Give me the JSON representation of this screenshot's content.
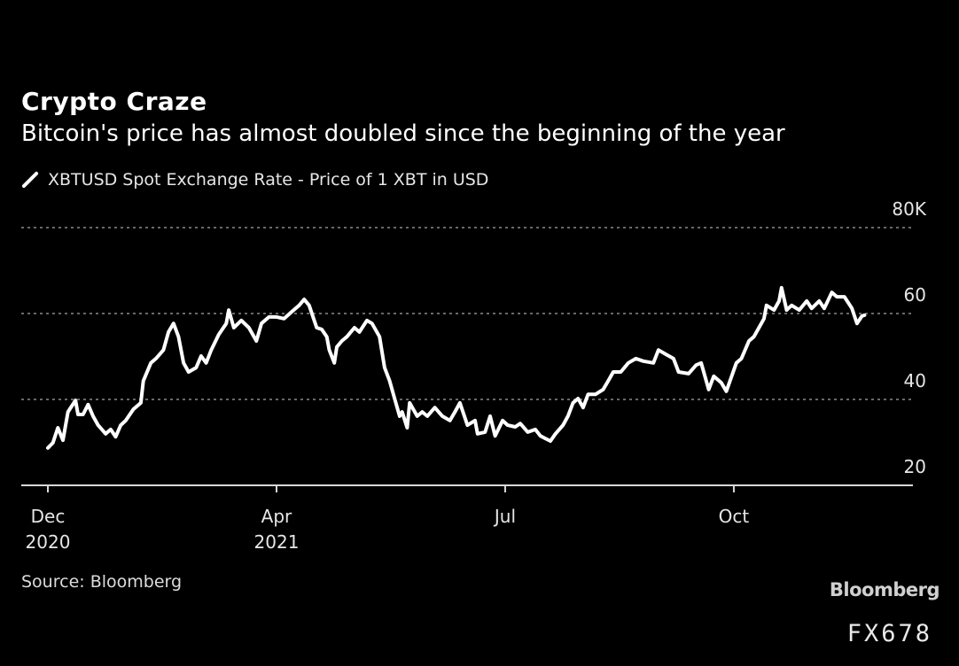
{
  "header": {
    "title": "Crypto Craze",
    "subtitle": "Bitcoin's price has almost doubled since the beginning of the year",
    "legend_label": "XBTUSD Spot Exchange Rate - Price of 1 XBT in USD"
  },
  "footer": {
    "source": "Source: Bloomberg",
    "logo": "Bloomberg",
    "watermark": "FX678"
  },
  "colors": {
    "background": "#000000",
    "line": "#ffffff",
    "grid": "#8a8a8a",
    "text": "#e6e6e6"
  },
  "chart_data": {
    "type": "line",
    "title": "Crypto Craze",
    "subtitle": "Bitcoin's price has almost doubled since the beginning of the year",
    "xlabel": "",
    "ylabel": "",
    "x_unit": "days from first tick",
    "xlim": [
      -10,
      344
    ],
    "ylim": [
      20,
      80
    ],
    "y_ticks": [
      {
        "value": 20,
        "label": "20"
      },
      {
        "value": 40,
        "label": "40"
      },
      {
        "value": 60,
        "label": "60"
      },
      {
        "value": 80,
        "label": "80K"
      }
    ],
    "x_ticks": [
      {
        "value": 0,
        "label": "Dec",
        "sublabel": "2020"
      },
      {
        "value": 91,
        "label": "Apr",
        "sublabel": "2021"
      },
      {
        "value": 182,
        "label": "Jul",
        "sublabel": ""
      },
      {
        "value": 273,
        "label": "Oct",
        "sublabel": ""
      }
    ],
    "grid": true,
    "legend_position": "top-left",
    "series": [
      {
        "name": "XBTUSD Spot Exchange Rate - Price of 1 XBT in USD",
        "x": [
          0,
          2,
          4,
          6,
          8,
          11,
          12,
          14,
          16,
          18,
          20,
          23,
          25,
          27,
          29,
          31,
          34,
          37,
          38,
          41,
          43,
          46,
          48,
          50,
          52,
          54,
          56,
          59,
          61,
          63,
          65,
          68,
          71,
          72,
          74,
          77,
          80,
          83,
          85,
          88,
          91,
          94,
          97,
          100,
          102,
          104,
          107,
          109,
          111,
          112,
          114,
          115,
          117,
          119,
          122,
          124,
          127,
          129,
          132,
          134,
          136,
          138,
          140,
          141,
          143,
          144,
          147,
          149,
          151,
          154,
          157,
          160,
          162,
          164,
          167,
          170,
          171,
          174,
          176,
          178,
          181,
          183,
          186,
          188,
          191,
          194,
          196,
          198,
          200,
          202,
          205,
          207,
          209,
          211,
          213,
          215,
          218,
          221,
          223,
          225,
          228,
          231,
          234,
          237,
          241,
          243,
          246,
          249,
          251,
          255,
          258,
          260,
          263,
          265,
          268,
          270,
          274,
          276,
          279,
          281,
          283,
          285,
          286,
          289,
          291,
          292,
          294,
          296,
          299,
          302,
          304,
          307,
          309,
          312,
          314,
          317,
          320,
          322,
          324,
          325
        ],
        "y": [
          28.7,
          29.9,
          33.4,
          30.5,
          37.1,
          39.8,
          36.5,
          36.5,
          38.8,
          36.1,
          34,
          32,
          33,
          31.3,
          34,
          35.1,
          37.7,
          39.2,
          44.3,
          48.5,
          49.5,
          51.5,
          55.7,
          57.7,
          54.6,
          48.5,
          46.4,
          47.4,
          50.1,
          48.5,
          51.5,
          55.1,
          57.7,
          60.8,
          56.7,
          58.4,
          56.7,
          53.6,
          57.7,
          59.2,
          59.2,
          58.8,
          60.4,
          61.9,
          63.3,
          61.9,
          56.7,
          56.3,
          54.6,
          51.5,
          48.5,
          52.2,
          53.6,
          54.6,
          56.7,
          55.7,
          58.4,
          57.7,
          54.6,
          47.4,
          44.3,
          40.2,
          36.1,
          37.1,
          33.4,
          39.2,
          36.1,
          37.1,
          36.1,
          38.1,
          36.1,
          35.1,
          37.1,
          39.2,
          34,
          35.1,
          32,
          32.4,
          36.1,
          31.5,
          35.1,
          34,
          33.6,
          34.4,
          32.4,
          33,
          31.5,
          30.9,
          30.3,
          32,
          34,
          36.1,
          39.2,
          40.2,
          38.1,
          41.2,
          41.2,
          42.3,
          44.3,
          46.4,
          46.4,
          48.5,
          49.5,
          48.9,
          48.5,
          51.5,
          50.5,
          49.5,
          46.4,
          46,
          48,
          48.5,
          42.3,
          45.4,
          43.9,
          41.9,
          48.5,
          49.5,
          53.6,
          54.6,
          56.7,
          58.8,
          61.9,
          60.8,
          62.9,
          66,
          60.8,
          61.9,
          60.8,
          62.9,
          61.2,
          62.9,
          61.2,
          64.9,
          63.9,
          63.9,
          61.2,
          57.7,
          59.4,
          59.6
        ]
      }
    ]
  }
}
